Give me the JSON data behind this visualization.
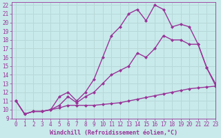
{
  "xlabel": "Windchill (Refroidissement éolien,°C)",
  "xlim": [
    -0.5,
    23
  ],
  "ylim": [
    9,
    22.3
  ],
  "xticks": [
    0,
    1,
    2,
    3,
    4,
    5,
    6,
    7,
    8,
    9,
    10,
    11,
    12,
    13,
    14,
    15,
    16,
    17,
    18,
    19,
    20,
    21,
    22,
    23
  ],
  "yticks": [
    9,
    10,
    11,
    12,
    13,
    14,
    15,
    16,
    17,
    18,
    19,
    20,
    21,
    22
  ],
  "bg_color": "#c8eaea",
  "line_color": "#993399",
  "grid_color": "#b8d8d8",
  "line1_x": [
    0,
    1,
    2,
    3,
    4,
    5,
    6,
    7,
    8,
    9,
    10,
    11,
    12,
    13,
    14,
    15,
    16,
    17,
    18,
    19,
    20,
    21,
    22,
    23
  ],
  "line1_y": [
    11.0,
    9.5,
    9.8,
    9.8,
    10.0,
    10.2,
    10.5,
    10.5,
    10.5,
    10.5,
    10.6,
    10.7,
    10.8,
    11.0,
    11.2,
    11.4,
    11.6,
    11.8,
    12.0,
    12.2,
    12.4,
    12.5,
    12.6,
    12.7
  ],
  "line2_x": [
    0,
    1,
    2,
    3,
    4,
    5,
    6,
    7,
    8,
    9,
    10,
    11,
    12,
    13,
    14,
    15,
    16,
    17,
    18,
    19,
    20,
    21,
    22,
    23
  ],
  "line2_y": [
    11.0,
    9.5,
    9.8,
    9.8,
    10.0,
    10.5,
    11.5,
    10.8,
    11.5,
    12.0,
    13.0,
    14.0,
    14.5,
    15.0,
    16.5,
    16.0,
    17.0,
    18.5,
    18.0,
    18.0,
    17.5,
    17.5,
    14.8,
    13.0
  ],
  "line3_x": [
    0,
    1,
    2,
    3,
    4,
    5,
    6,
    7,
    8,
    9,
    10,
    11,
    12,
    13,
    14,
    15,
    16,
    17,
    18,
    19,
    20,
    21,
    22,
    23
  ],
  "line3_y": [
    11.0,
    9.5,
    9.8,
    9.8,
    10.0,
    11.5,
    12.0,
    11.0,
    12.0,
    13.5,
    16.0,
    18.5,
    19.5,
    21.0,
    21.5,
    20.2,
    22.0,
    21.5,
    19.5,
    19.8,
    19.5,
    17.5,
    14.8,
    12.8
  ],
  "marker": "D",
  "marker_size": 2.5,
  "line_width": 1.0,
  "font_size_tick": 5.5,
  "font_size_label": 6.0
}
